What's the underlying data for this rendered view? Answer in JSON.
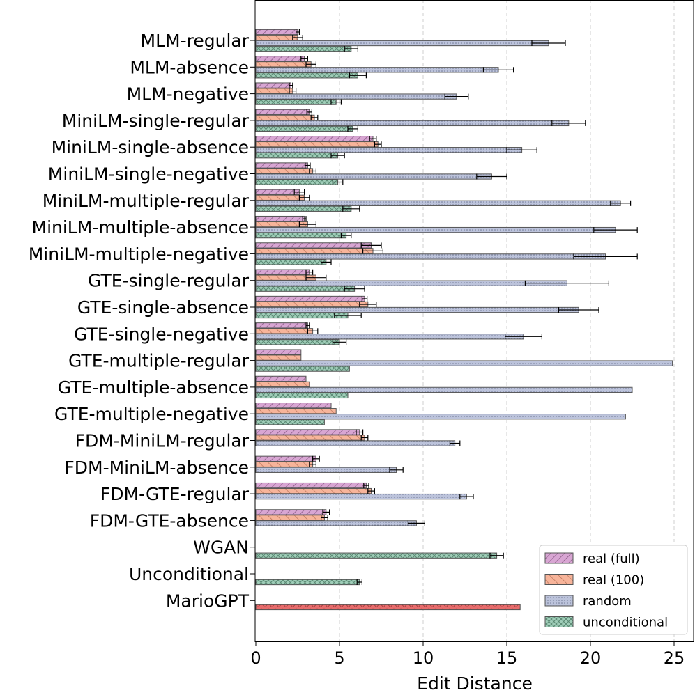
{
  "chart_data": {
    "type": "bar",
    "orientation": "horizontal",
    "title": "",
    "xlabel": "Edit Distance",
    "ylabel": "",
    "xlim": [
      0,
      26
    ],
    "xticks": [
      0,
      5,
      10,
      15,
      20,
      25
    ],
    "grid": "vertical dashed",
    "legend_position": "bottom-right",
    "categories": [
      "MLM-regular",
      "MLM-absence",
      "MLM-negative",
      "MiniLM-single-regular",
      "MiniLM-single-absence",
      "MiniLM-single-negative",
      "MiniLM-multiple-regular",
      "MiniLM-multiple-absence",
      "MiniLM-multiple-negative",
      "GTE-single-regular",
      "GTE-single-absence",
      "GTE-single-negative",
      "GTE-multiple-regular",
      "GTE-multiple-absence",
      "GTE-multiple-negative",
      "FDM-MiniLM-regular",
      "FDM-MiniLM-absence",
      "FDM-GTE-regular",
      "FDM-GTE-absence",
      "WGAN",
      "Unconditional",
      "MarioGPT"
    ],
    "series": [
      {
        "name": "real (full)",
        "color": "#d8a6d3",
        "pattern": "diag-right",
        "values": [
          2.5,
          2.9,
          2.1,
          3.2,
          7.0,
          3.1,
          2.6,
          2.9,
          6.9,
          3.2,
          6.5,
          3.1,
          2.7,
          3.0,
          4.5,
          6.2,
          3.6,
          6.6,
          4.2,
          null,
          null,
          null
        ],
        "errors": [
          0.1,
          0.2,
          0.1,
          0.15,
          0.2,
          0.15,
          0.3,
          0.1,
          0.6,
          0.2,
          0.15,
          0.1,
          0,
          0,
          0,
          0.2,
          0.2,
          0.15,
          0.2,
          null,
          null,
          null
        ]
      },
      {
        "name": "real (100)",
        "color": "#f7b49a",
        "pattern": "diag-left",
        "values": [
          2.5,
          3.3,
          2.2,
          3.5,
          7.3,
          3.4,
          2.9,
          3.1,
          7.0,
          3.6,
          6.7,
          3.4,
          2.7,
          3.2,
          4.8,
          6.5,
          3.4,
          6.9,
          4.1,
          null,
          null,
          null
        ],
        "errors": [
          0.3,
          0.3,
          0.2,
          0.2,
          0.2,
          0.2,
          0.3,
          0.5,
          0.6,
          0.6,
          0.5,
          0.3,
          0,
          0,
          0,
          0.2,
          0.2,
          0.2,
          0.2,
          null,
          null,
          null
        ]
      },
      {
        "name": "random",
        "color": "#bcc3db",
        "pattern": "dots",
        "values": [
          17.5,
          14.5,
          12.0,
          18.7,
          15.9,
          14.1,
          21.8,
          21.5,
          20.9,
          18.6,
          19.3,
          16.0,
          24.9,
          22.5,
          22.1,
          11.9,
          8.4,
          12.6,
          9.6,
          null,
          null,
          null
        ],
        "errors": [
          1.0,
          0.9,
          0.7,
          1.0,
          0.9,
          0.9,
          0.6,
          1.3,
          1.9,
          2.5,
          1.2,
          1.1,
          0,
          0,
          0,
          0.3,
          0.4,
          0.4,
          0.5,
          null,
          null,
          null
        ]
      },
      {
        "name": "unconditional",
        "color": "#9fcdb8",
        "pattern": "crosshatch",
        "values": [
          5.7,
          6.1,
          4.8,
          5.8,
          4.9,
          4.9,
          5.7,
          5.4,
          4.2,
          5.9,
          5.5,
          5.0,
          5.6,
          5.5,
          4.1,
          null,
          null,
          null,
          null,
          14.4,
          6.2,
          null
        ],
        "errors": [
          0.4,
          0.5,
          0.3,
          0.3,
          0.4,
          0.3,
          0.5,
          0.3,
          0.3,
          0.6,
          0.8,
          0.4,
          0,
          0,
          0,
          null,
          null,
          null,
          null,
          0.4,
          0.15,
          null
        ]
      },
      {
        "name": "MarioGPT",
        "color": "#e86c6c",
        "pattern": "chevron",
        "legend": false,
        "values": [
          null,
          null,
          null,
          null,
          null,
          null,
          null,
          null,
          null,
          null,
          null,
          null,
          null,
          null,
          null,
          null,
          null,
          null,
          null,
          null,
          null,
          15.8
        ],
        "errors": [
          null,
          null,
          null,
          null,
          null,
          null,
          null,
          null,
          null,
          null,
          null,
          null,
          null,
          null,
          null,
          null,
          null,
          null,
          null,
          null,
          null,
          0
        ]
      }
    ]
  }
}
